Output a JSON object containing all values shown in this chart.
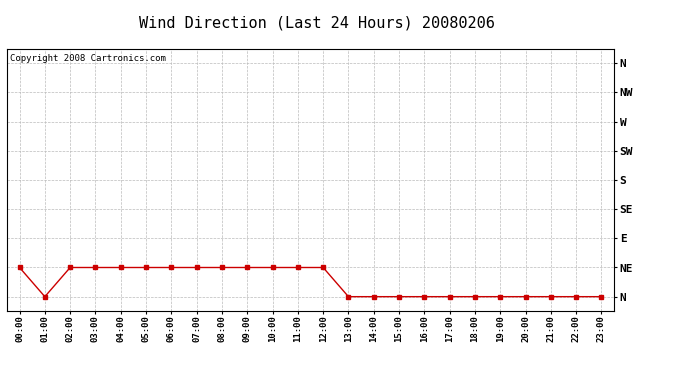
{
  "title": "Wind Direction (Last 24 Hours) 20080206",
  "copyright_text": "Copyright 2008 Cartronics.com",
  "background_color": "#ffffff",
  "line_color": "#cc0000",
  "marker_color": "#cc0000",
  "grid_color": "#bbbbbb",
  "ytick_labels": [
    "N",
    "NE",
    "E",
    "SE",
    "S",
    "SW",
    "W",
    "NW",
    "N"
  ],
  "ytick_values": [
    0,
    1,
    2,
    3,
    4,
    5,
    6,
    7,
    8
  ],
  "xtick_labels": [
    "00:00",
    "01:00",
    "02:00",
    "03:00",
    "04:00",
    "05:00",
    "06:00",
    "07:00",
    "08:00",
    "09:00",
    "10:00",
    "11:00",
    "12:00",
    "13:00",
    "14:00",
    "15:00",
    "16:00",
    "17:00",
    "18:00",
    "19:00",
    "20:00",
    "21:00",
    "22:00",
    "23:00"
  ],
  "x_values": [
    0,
    1,
    2,
    3,
    4,
    5,
    6,
    7,
    8,
    9,
    10,
    11,
    12,
    13,
    14,
    15,
    16,
    17,
    18,
    19,
    20,
    21,
    22,
    23
  ],
  "y_values": [
    1,
    0,
    1,
    1,
    1,
    1,
    1,
    1,
    1,
    1,
    1,
    1,
    1,
    0,
    0,
    0,
    0,
    0,
    0,
    0,
    0,
    0,
    0,
    0
  ],
  "ylim": [
    -0.5,
    8.5
  ],
  "xlim": [
    -0.5,
    23.5
  ],
  "title_fontsize": 11,
  "copyright_fontsize": 6.5,
  "ytick_fontsize": 8,
  "xtick_fontsize": 6.5
}
